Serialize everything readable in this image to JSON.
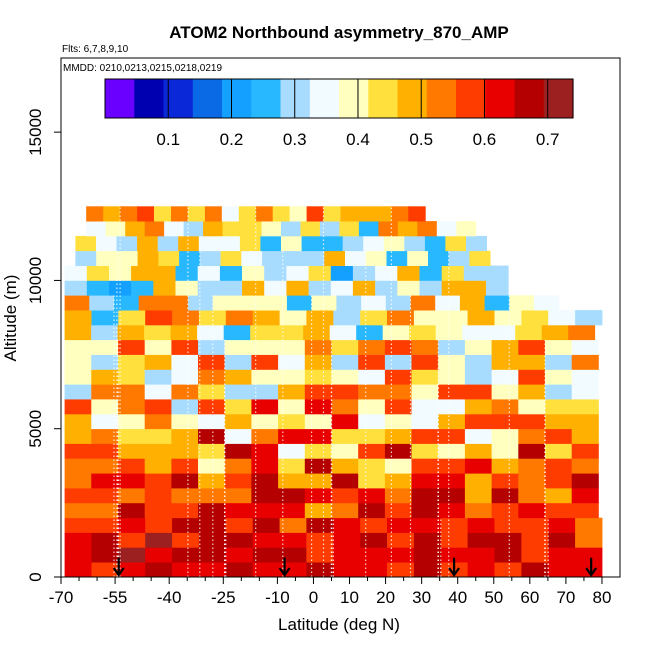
{
  "chart_data": {
    "type": "heatmap",
    "title": "ATOM2 Northbound asymmetry_870_AMP",
    "subtitle_flights": "Flts: 6,7,8,9,10",
    "subtitle_dates": "MMDD: 0210,0213,0215,0218,0219",
    "xlabel": "Latitude (deg N)",
    "ylabel": "Altitude (m)",
    "xlim": [
      -70,
      85
    ],
    "ylim": [
      0,
      17500
    ],
    "x_ticks": [
      -70,
      -55,
      -40,
      -25,
      -10,
      0,
      10,
      20,
      30,
      40,
      50,
      60,
      70,
      80
    ],
    "x_minor_ticks": [
      -65,
      -60,
      -50,
      -45,
      -35,
      -30,
      -20,
      -15,
      -5,
      5,
      15,
      25,
      35,
      45,
      55,
      65,
      75
    ],
    "y_ticks": [
      0,
      5000,
      10000,
      15000
    ],
    "colorbar": {
      "min": 0.0,
      "max": 0.74,
      "tick_values": [
        0.1,
        0.2,
        0.3,
        0.4,
        0.5,
        0.6,
        0.7
      ],
      "tick_labels": [
        "0.1",
        "0.2",
        "0.3",
        "0.4",
        "0.5",
        "0.6",
        "0.7"
      ],
      "divider_values": [
        0.1,
        0.2,
        0.3,
        0.4,
        0.5,
        0.6,
        0.7
      ],
      "colors": [
        "#6a00ff",
        "#0000b0",
        "#0a28d8",
        "#0a6ae6",
        "#14a0ff",
        "#28b8ff",
        "#a8dcff",
        "#f2fbff",
        "#ffffc0",
        "#ffe03c",
        "#ffb000",
        "#ff7800",
        "#ff3c00",
        "#e80000",
        "#b40000",
        "#9c2020"
      ]
    },
    "profile_latitudes": [
      -54,
      -8,
      39,
      77
    ],
    "layer_tops": [
      500,
      1000,
      1500,
      2000,
      2500,
      3000,
      3500,
      4000,
      4500,
      5000,
      5500,
      6000,
      6500,
      7000,
      7500,
      8000,
      8500,
      9000,
      9500,
      10000,
      10500,
      11000,
      11500,
      12000,
      12500
    ],
    "layer_extents": [
      [
        -69,
        80
      ],
      [
        -69,
        80
      ],
      [
        -69,
        80
      ],
      [
        -69,
        80
      ],
      [
        -69,
        79
      ],
      [
        -69,
        79
      ],
      [
        -69,
        79
      ],
      [
        -69,
        79
      ],
      [
        -69,
        79
      ],
      [
        -69,
        79
      ],
      [
        -69,
        79
      ],
      [
        -69,
        79
      ],
      [
        -69,
        79
      ],
      [
        -69,
        79
      ],
      [
        -69,
        79
      ],
      [
        -69,
        79
      ],
      [
        -69,
        78
      ],
      [
        -69,
        80
      ],
      [
        -69,
        68
      ],
      [
        -69,
        54
      ],
      [
        -69,
        54
      ],
      [
        -66,
        49
      ],
      [
        -66,
        48
      ],
      [
        -63,
        45
      ],
      [
        -63,
        31
      ]
    ],
    "layer_values": [
      [
        0.62,
        0.6,
        0.63,
        0.66,
        0.62,
        0.64,
        0.66,
        0.62,
        0.63,
        0.66,
        0.62,
        0.62,
        0.6,
        0.65,
        0.58,
        0.62,
        0.56,
        0.65,
        0.62,
        0.64
      ],
      [
        0.63,
        0.68,
        0.7,
        0.62,
        0.67,
        0.68,
        0.62,
        0.67,
        0.69,
        0.56,
        0.64,
        0.63,
        0.62,
        0.65,
        0.64,
        0.63,
        0.66,
        0.56,
        0.64,
        0.63
      ],
      [
        0.64,
        0.68,
        0.56,
        0.7,
        0.57,
        0.69,
        0.69,
        0.62,
        0.62,
        0.58,
        0.62,
        0.68,
        0.57,
        0.68,
        0.56,
        0.69,
        0.66,
        0.56,
        0.67,
        0.55
      ],
      [
        0.58,
        0.6,
        0.61,
        0.56,
        0.66,
        0.67,
        0.57,
        0.69,
        0.54,
        0.69,
        0.61,
        0.59,
        0.61,
        0.64,
        0.56,
        0.61,
        0.59,
        0.57,
        0.61,
        0.55
      ],
      [
        0.53,
        0.54,
        0.65,
        0.57,
        0.57,
        0.69,
        0.62,
        0.64,
        0.63,
        0.5,
        0.55,
        0.65,
        0.58,
        0.67,
        0.64,
        0.55,
        0.56,
        0.62,
        0.58,
        0.56
      ],
      [
        0.56,
        0.56,
        0.51,
        0.6,
        0.53,
        0.52,
        0.51,
        0.65,
        0.66,
        0.61,
        0.59,
        0.61,
        0.55,
        0.67,
        0.69,
        0.5,
        0.66,
        0.54,
        0.5,
        0.64
      ],
      [
        0.52,
        0.63,
        0.62,
        0.6,
        0.67,
        0.5,
        0.58,
        0.65,
        0.48,
        0.49,
        0.68,
        0.45,
        0.48,
        0.62,
        0.61,
        0.49,
        0.56,
        0.52,
        0.59,
        0.65
      ],
      [
        0.53,
        0.51,
        0.57,
        0.49,
        0.6,
        0.4,
        0.54,
        0.61,
        0.45,
        0.66,
        0.5,
        0.42,
        0.4,
        0.58,
        0.58,
        0.62,
        0.49,
        0.55,
        0.6,
        0.53
      ],
      [
        0.58,
        0.58,
        0.5,
        0.5,
        0.49,
        0.46,
        0.68,
        0.64,
        0.36,
        0.43,
        0.41,
        0.6,
        0.69,
        0.43,
        0.4,
        0.49,
        0.4,
        0.65,
        0.43,
        0.57
      ],
      [
        0.47,
        0.51,
        0.46,
        0.44,
        0.5,
        0.65,
        0.35,
        0.51,
        0.63,
        0.62,
        0.46,
        0.45,
        0.5,
        0.57,
        0.57,
        0.35,
        0.37,
        0.54,
        0.56,
        0.49
      ],
      [
        0.5,
        0.34,
        0.39,
        0.55,
        0.4,
        0.35,
        0.47,
        0.38,
        0.44,
        0.4,
        0.61,
        0.35,
        0.41,
        0.35,
        0.47,
        0.6,
        0.57,
        0.56,
        0.5,
        0.48
      ],
      [
        0.6,
        0.39,
        0.53,
        0.56,
        0.3,
        0.57,
        0.42,
        0.62,
        0.41,
        0.61,
        0.55,
        0.37,
        0.6,
        0.33,
        0.34,
        0.5,
        0.53,
        0.41,
        0.42,
        0.46
      ],
      [
        0.32,
        0.53,
        0.55,
        0.34,
        0.51,
        0.44,
        0.31,
        0.32,
        0.5,
        0.59,
        0.58,
        0.54,
        0.52,
        0.41,
        0.58,
        0.58,
        0.39,
        0.5,
        0.3,
        0.36
      ],
      [
        0.38,
        0.47,
        0.42,
        0.32,
        0.35,
        0.53,
        0.5,
        0.38,
        0.38,
        0.44,
        0.41,
        0.36,
        0.59,
        0.46,
        0.37,
        0.32,
        0.35,
        0.56,
        0.39,
        0.34
      ],
      [
        0.4,
        0.28,
        0.42,
        0.49,
        0.33,
        0.59,
        0.29,
        0.58,
        0.34,
        0.48,
        0.3,
        0.59,
        0.31,
        0.59,
        0.38,
        0.3,
        0.49,
        0.5,
        0.28,
        0.51
      ],
      [
        0.41,
        0.39,
        0.57,
        0.4,
        0.57,
        0.3,
        0.41,
        0.4,
        0.41,
        0.51,
        0.46,
        0.53,
        0.57,
        0.51,
        0.3,
        0.41,
        0.5,
        0.56,
        0.41,
        0.33
      ],
      [
        0.48,
        0.32,
        0.5,
        0.45,
        0.47,
        0.35,
        0.27,
        0.44,
        0.46,
        0.5,
        0.33,
        0.26,
        0.37,
        0.43,
        0.41,
        0.35,
        0.35,
        0.42,
        0.48,
        0.51
      ],
      [
        0.5,
        0.26,
        0.42,
        0.56,
        0.53,
        0.45,
        0.55,
        0.48,
        0.37,
        0.48,
        0.31,
        0.42,
        0.52,
        0.37,
        0.39,
        0.5,
        0.38,
        0.42,
        0.36,
        0.29
      ],
      [
        0.53,
        0.3,
        0.26,
        0.51,
        0.54,
        0.32,
        0.39,
        0.37,
        0.37,
        0.24,
        0.37,
        0.28,
        0.35,
        0.3,
        0.52,
        0.34,
        0.49,
        0.27,
        0.39,
        0.36
      ],
      [
        0.32,
        0.27,
        0.23,
        0.26,
        0.47,
        0.39,
        0.31,
        0.3,
        0.47,
        0.36,
        0.5,
        0.32,
        0.34,
        0.47,
        0.31,
        0.39,
        0.3,
        0.48,
        0.48,
        0.29
      ],
      [
        0.36,
        0.45,
        0.38,
        0.47,
        0.47,
        0.25,
        0.36,
        0.27,
        0.37,
        0.31,
        0.33,
        0.45,
        0.23,
        0.31,
        0.36,
        0.48,
        0.27,
        0.42,
        0.31,
        0.31
      ],
      [
        0.29,
        0.39,
        0.41,
        0.5,
        0.42,
        0.25,
        0.32,
        0.46,
        0.35,
        0.29,
        0.3,
        0.32,
        0.5,
        0.36,
        0.37,
        0.25,
        0.39,
        0.26,
        0.29,
        0.42
      ],
      [
        0.43,
        0.35,
        0.28,
        0.48,
        0.31,
        0.48,
        0.33,
        0.35,
        0.45,
        0.25,
        0.4,
        0.25,
        0.26,
        0.29,
        0.34,
        0.38,
        0.28,
        0.24,
        0.45,
        0.29
      ],
      [
        0.34,
        0.4,
        0.48,
        0.52,
        0.34,
        0.32,
        0.49,
        0.46,
        0.45,
        0.37,
        0.32,
        0.45,
        0.29,
        0.43,
        0.26,
        0.52,
        0.47,
        0.51,
        0.36,
        0.4
      ],
      [
        0.55,
        0.49,
        0.53,
        0.57,
        0.43,
        0.52,
        0.46,
        0.55,
        0.36,
        0.43,
        0.52,
        0.46,
        0.39,
        0.57,
        0.44,
        0.49,
        0.48,
        0.5,
        0.51,
        0.56
      ]
    ]
  }
}
